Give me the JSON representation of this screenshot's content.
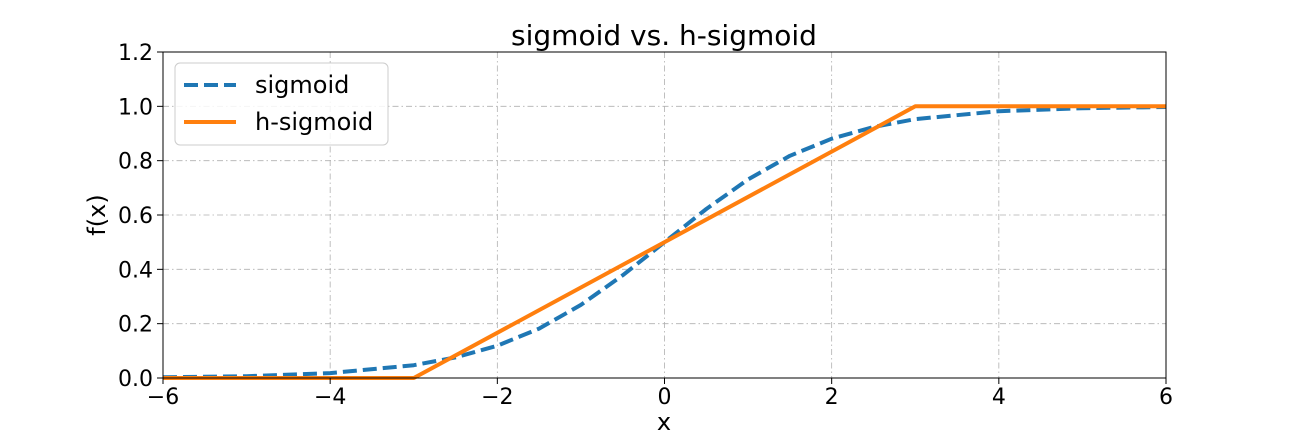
{
  "chart_data": {
    "type": "line",
    "title": "sigmoid vs. h-sigmoid",
    "xlabel": "x",
    "ylabel": "f(x)",
    "xlim": [
      -6,
      6
    ],
    "ylim": [
      0.0,
      1.2
    ],
    "grid": true,
    "legend_position": "top-left",
    "x_ticks": [
      "−6",
      "−4",
      "−2",
      "0",
      "2",
      "4",
      "6"
    ],
    "x_tick_values": [
      -6,
      -4,
      -2,
      0,
      2,
      4,
      6
    ],
    "y_ticks": [
      "0.0",
      "0.2",
      "0.4",
      "0.6",
      "0.8",
      "1.0",
      "1.2"
    ],
    "y_tick_values": [
      0.0,
      0.2,
      0.4,
      0.6,
      0.8,
      1.0,
      1.2
    ],
    "series": [
      {
        "name": "sigmoid",
        "style": "dashed",
        "color": "#1f77b4",
        "x": [
          -6,
          -5,
          -4,
          -3,
          -2.5,
          -2,
          -1.5,
          -1,
          -0.5,
          0,
          0.5,
          1,
          1.5,
          2,
          2.5,
          3,
          4,
          5,
          6
        ],
        "y": [
          0.0025,
          0.0067,
          0.018,
          0.047,
          0.076,
          0.119,
          0.182,
          0.269,
          0.378,
          0.5,
          0.622,
          0.731,
          0.818,
          0.881,
          0.924,
          0.953,
          0.982,
          0.993,
          0.9975
        ]
      },
      {
        "name": "h-sigmoid",
        "style": "solid",
        "color": "#ff7f0e",
        "x": [
          -6,
          -3,
          3,
          6
        ],
        "y": [
          0.0,
          0.0,
          1.0,
          1.0
        ]
      }
    ]
  }
}
